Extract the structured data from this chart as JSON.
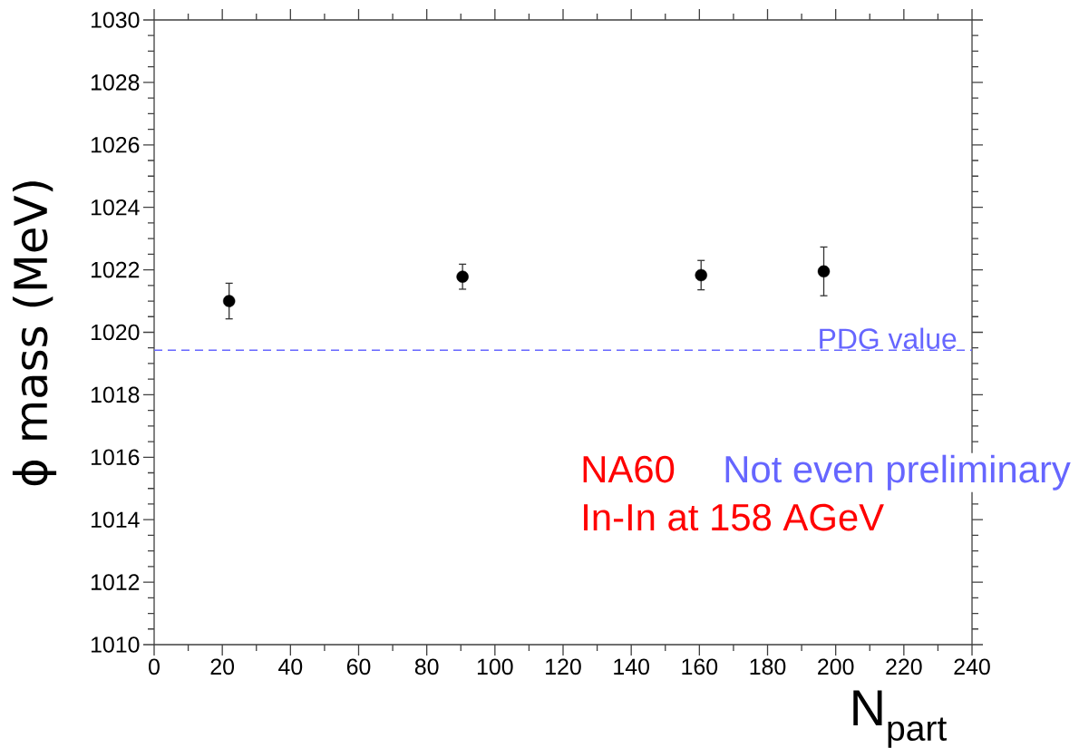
{
  "chart_data": {
    "type": "scatter",
    "xlabel": "N$_{part}$",
    "ylabel": "ϕ mass (MeV)",
    "x": [
      22,
      90.5,
      160.5,
      196.5
    ],
    "series": [
      {
        "color": "#000000",
        "values": [
          1021.0,
          1021.78,
          1021.83,
          1021.95
        ],
        "errors": [
          0.57,
          0.4,
          0.47,
          0.78
        ]
      }
    ],
    "marker": "circle",
    "xlim": [
      0,
      240
    ],
    "xticks": [
      0,
      20,
      40,
      60,
      80,
      100,
      120,
      140,
      160,
      180,
      200,
      220,
      240
    ],
    "ylim": [
      1010,
      1030
    ],
    "yticks": [
      1010,
      1012,
      1014,
      1016,
      1018,
      1020,
      1022,
      1024,
      1026,
      1028,
      1030
    ],
    "ref_lines": [
      {
        "axis": "y",
        "value": 1019.43,
        "label": "PDG value",
        "color": "#6666ff",
        "line_style": "dashed"
      }
    ],
    "annotations": [
      "NA60",
      "Not even preliminary",
      "In-In at 158 AGeV"
    ],
    "grid": false
  }
}
